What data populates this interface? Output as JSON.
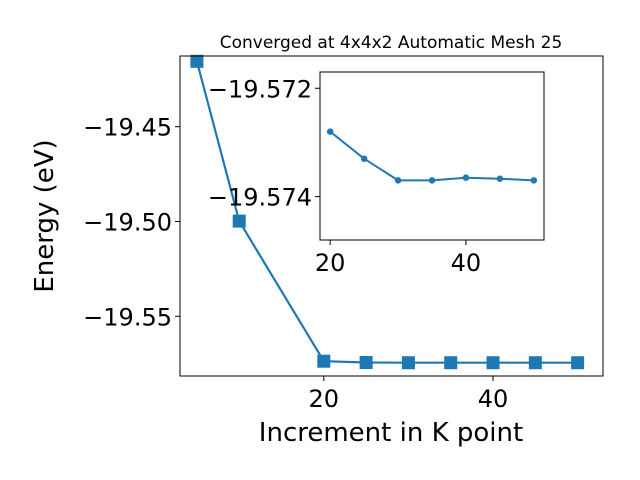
{
  "chart_data": [
    {
      "type": "line",
      "title": "Converged at 4x4x2 Automatic Mesh 25",
      "xlabel": "Increment in K point",
      "ylabel": "Energy (eV)",
      "xlim": [
        3,
        53
      ],
      "ylim": [
        -19.5815,
        -19.4127
      ],
      "y_inverted": true,
      "xticks": [
        20,
        40
      ],
      "yticks": [
        -19.45,
        -19.5,
        -19.55
      ],
      "ytick_labels": [
        "−19.45",
        "−19.50",
        "−19.55"
      ],
      "grid": false,
      "marker": "square",
      "color": "#1f77b4",
      "series": [
        {
          "x": [
            5,
            10,
            20,
            25,
            30,
            35,
            40,
            45,
            50
          ],
          "y": [
            -19.4155,
            -19.4998,
            -19.5737,
            -19.5744,
            -19.5745,
            -19.5745,
            -19.5745,
            -19.5745,
            -19.5745
          ]
        }
      ]
    },
    {
      "type": "line",
      "title": "",
      "xlabel": "",
      "ylabel": "",
      "xlim": [
        18.5,
        51.5
      ],
      "ylim": [
        -19.5748,
        -19.5717
      ],
      "y_inverted": true,
      "xticks": [
        20,
        40
      ],
      "yticks": [
        -19.574,
        -19.572
      ],
      "ytick_labels": [
        "−19.574",
        "−19.572"
      ],
      "grid": false,
      "marker": "circle",
      "color": "#1f77b4",
      "series": [
        {
          "x": [
            20,
            25,
            30,
            35,
            40,
            45,
            50
          ],
          "y": [
            -19.5728,
            -19.5733,
            -19.5737,
            -19.5737,
            -19.57365,
            -19.57367,
            -19.5737
          ]
        }
      ]
    }
  ]
}
